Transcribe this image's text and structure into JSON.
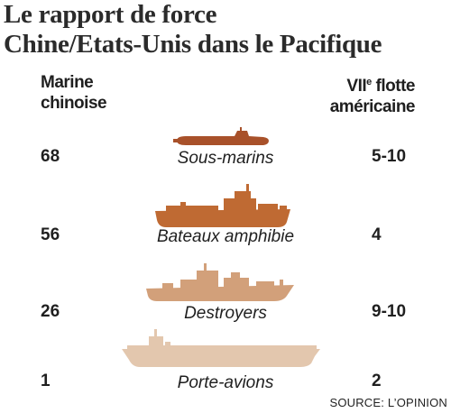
{
  "title_line1": "Le rapport de force",
  "title_line2": "Chine/Etats-Unis dans le Pacifique",
  "header_left_line1": "Marine",
  "header_left_line2": "chinoise",
  "header_right_numeral": "VII",
  "header_right_sup": "e",
  "header_right_line1_rest": " flotte",
  "header_right_line2": "américaine",
  "rows": [
    {
      "label": "Sous-marins",
      "china": "68",
      "us": "5-10",
      "icon": "submarine-icon",
      "color": "#a8512a"
    },
    {
      "label": "Bateaux amphibie",
      "china": "56",
      "us": "4",
      "icon": "amphibious-ship-icon",
      "color": "#bf6a33"
    },
    {
      "label": "Destroyers",
      "china": "26",
      "us": "9-10",
      "icon": "destroyer-icon",
      "color": "#d2a07a"
    },
    {
      "label": "Porte-avions",
      "china": "1",
      "us": "2",
      "icon": "aircraft-carrier-icon",
      "color": "#e3c7ae"
    }
  ],
  "source": "SOURCE: L’OPINION"
}
